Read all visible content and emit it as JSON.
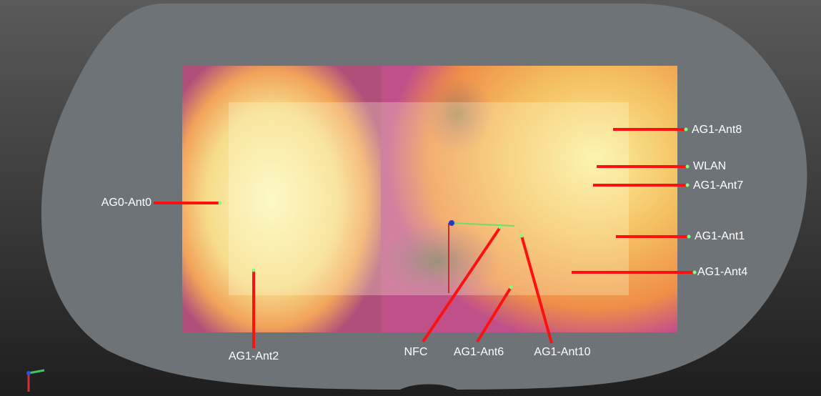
{
  "antenna_labels": [
    "AG0-Ant0",
    "AG1-Ant2",
    "NFC",
    "AG1-Ant6",
    "AG1-Ant10",
    "AG1-Ant8",
    "WLAN",
    "AG1-Ant7",
    "AG1-Ant1",
    "AG1-Ant4"
  ]
}
